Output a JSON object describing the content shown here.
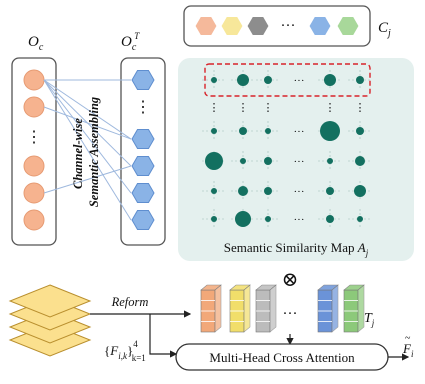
{
  "labels": {
    "oc": "O",
    "oc_sub": "c",
    "oct": "O",
    "oct_sub": "c",
    "oct_sup": "T",
    "cj": "C",
    "cj_sub": "j",
    "vertical_1": "Channel-wise",
    "vertical_2": "Semantic Assembling",
    "sim_map": "Semantic Similarity Map ",
    "sim_map_var": "A",
    "sim_map_var_sub": "j",
    "reform": "Reform",
    "tj": "T",
    "tj_sub": "j",
    "mhca": "Multi-Head Cross Attention",
    "f_hat": "F",
    "f_hat_sub": "i",
    "fik_open": "{",
    "fik_var": "F",
    "fik_sub": "i,k",
    "fik_close": "}",
    "fik_sup": "4",
    "fik_lower": "k=1",
    "ellipsis": "···",
    "vdots": "⋮",
    "otimes": "⊗"
  },
  "colors": {
    "orange_circle": "#f6b38f",
    "hex_blue": "#8ab3e6",
    "map_bg": "#e4f0ee",
    "map_dot": "#137060",
    "red_dash": "#d8232a",
    "token_palette": [
      "#f5b99b",
      "#f7e79a",
      "#8d8d8d",
      "#8ab3e6",
      "#a8d89a"
    ],
    "tj_palette": [
      "#f2a879",
      "#f1de6a",
      "#bcbcbc",
      "#6b93d8",
      "#8cc97a"
    ],
    "layer_fill": "#fbe08e"
  },
  "icons": {
    "otimes": "circled-times-icon",
    "hexagon": "hexagon-icon",
    "circle": "circle-icon",
    "layer": "feature-layer-icon"
  }
}
